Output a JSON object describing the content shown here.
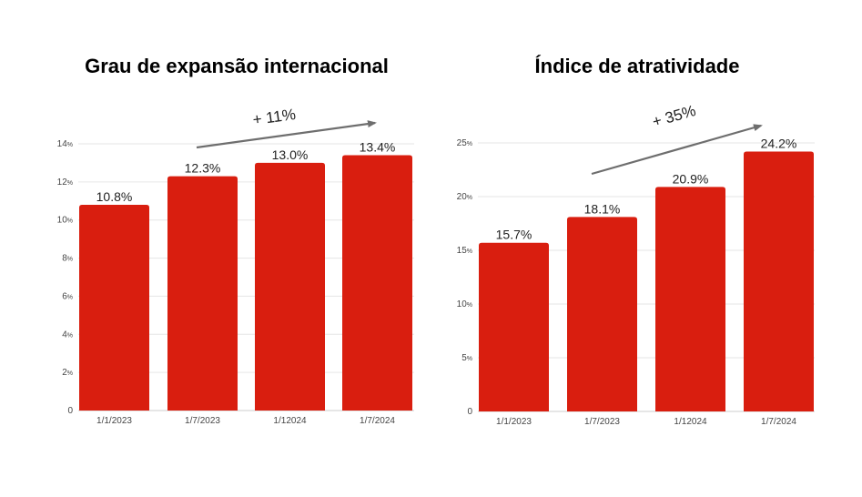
{
  "charts_meta": {
    "bar_color": "#d91e0f",
    "grid_color": "#e6e6e6",
    "arrow_color": "#6e6e6e"
  },
  "chart_data": [
    {
      "type": "bar",
      "title": "Grau de expansão internacional",
      "categories": [
        "1/1/2023",
        "1/7/2023",
        "1/12024",
        "1/7/2024"
      ],
      "values": [
        10.8,
        12.3,
        13.0,
        13.4
      ],
      "data_labels": [
        "10.8%",
        "12.3%",
        "13.0%",
        "13.4%"
      ],
      "ylim": [
        0,
        14
      ],
      "yticks": [
        0,
        2,
        4,
        6,
        8,
        10,
        12,
        14
      ],
      "ytick_suffix": "%",
      "annotation": "+ 11%",
      "grid": true
    },
    {
      "type": "bar",
      "title": "Índice de atratividade",
      "categories": [
        "1/1/2023",
        "1/7/2023",
        "1/12024",
        "1/7/2024"
      ],
      "values": [
        15.7,
        18.1,
        20.9,
        24.2
      ],
      "data_labels": [
        "15.7%",
        "18.1%",
        "20.9%",
        "24.2%"
      ],
      "ylim": [
        0,
        25
      ],
      "yticks": [
        0,
        5,
        10,
        15,
        20,
        25
      ],
      "ytick_suffix": "%",
      "annotation": "+ 35%",
      "grid": true
    }
  ]
}
